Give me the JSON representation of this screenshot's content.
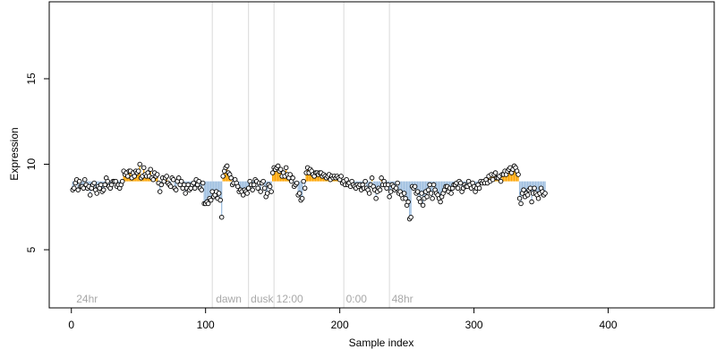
{
  "chart_data": {
    "type": "scatter",
    "title": "",
    "xlabel": "Sample index",
    "ylabel": "Expression",
    "xlim": [
      -16.5,
      479
    ],
    "ylim": [
      1.6,
      19.5
    ],
    "x_ticks": [
      0,
      100,
      200,
      300,
      400
    ],
    "x_tick_labels": [
      "0",
      "100",
      "200",
      "300",
      "400"
    ],
    "y_ticks": [
      5,
      10,
      15
    ],
    "y_tick_labels": [
      "5",
      "10",
      "15"
    ],
    "grid": false,
    "baseline": 9.0,
    "colors": {
      "above": "#ffa500",
      "below": "#9fbfe0",
      "point_stroke": "#000000",
      "point_fill": "#ffffff",
      "divider": "#d9d9d9",
      "phase_label": "#a8a8a8"
    },
    "phase_labels": [
      {
        "x": 3,
        "text": "24hr"
      },
      {
        "x": 107,
        "text": "dawn"
      },
      {
        "x": 133,
        "text": "dusk"
      },
      {
        "x": 152,
        "text": "12:00"
      },
      {
        "x": 204,
        "text": "0:00"
      },
      {
        "x": 238,
        "text": "48hr"
      }
    ],
    "dividers": [
      105,
      132,
      151,
      203,
      237
    ],
    "series": [
      {
        "x_start": 1,
        "values": [
          8.5,
          8.6,
          8.9,
          9.1,
          8.5,
          9.0,
          8.7,
          8.7,
          8.6,
          9.1,
          8.8,
          8.6,
          8.7,
          8.2,
          8.6,
          8.8,
          8.9,
          8.5,
          8.3,
          8.7,
          8.6,
          8.8,
          8.4,
          8.5,
          8.8,
          9.2,
          9.0,
          8.7,
          8.6,
          8.8,
          9.0,
          9.0,
          9.0,
          8.7,
          8.8,
          8.6,
          8.8,
          9.0,
          9.6,
          9.4,
          9.5,
          9.3,
          9.6,
          9.6,
          9.2,
          9.5,
          9.3,
          9.6,
          9.5,
          9.6,
          10.0,
          9.2,
          9.3,
          9.8,
          9.4,
          9.3,
          9.5,
          9.3,
          9.7,
          9.2,
          9.1,
          9.5,
          9.3,
          9.4,
          8.9,
          8.4,
          8.8,
          9.2,
          9.0,
          9.2,
          9.3,
          8.9,
          8.8,
          8.7,
          9.2,
          9.1,
          8.6,
          8.5,
          9.0,
          9.2,
          8.8,
          9.0,
          8.6,
          8.8,
          8.3,
          8.6,
          8.8,
          8.5,
          8.6,
          8.8,
          8.9,
          8.6,
          9.1,
          8.8,
          9.0,
          8.6,
          8.5,
          8.9,
          7.7,
          7.7,
          7.8,
          7.7,
          8.0,
          7.9,
          8.4,
          8.1,
          8.2,
          8.4,
          8.0,
          8.3,
          7.9,
          6.9,
          9.3,
          9.6,
          9.8,
          9.9,
          9.5,
          9.4,
          9.2,
          8.8,
          8.9,
          9.1,
          8.9,
          8.7,
          8.4,
          8.5,
          8.4,
          8.2,
          8.5,
          8.4,
          8.3,
          8.6,
          9.0,
          8.8,
          8.5,
          8.8,
          9.1,
          9.0,
          8.6,
          8.9,
          8.4,
          8.9,
          9.0,
          8.6,
          8.1,
          8.3,
          8.8,
          8.7,
          8.4,
          9.5,
          9.8,
          9.7,
          9.8,
          9.9,
          9.6,
          9.7,
          9.3,
          9.5,
          9.3,
          9.8,
          9.4,
          9.2,
          9.4,
          9.0,
          9.2,
          8.7,
          8.8,
          8.9,
          8.2,
          8.3,
          7.9,
          8.0,
          9.0,
          8.6,
          9.5,
          9.8,
          9.5,
          9.7,
          9.6,
          9.4,
          9.3,
          9.5,
          9.5,
          9.4,
          9.5,
          9.5,
          9.3,
          9.4,
          9.3,
          9.2,
          9.3,
          9.4,
          9.1,
          9.3,
          9.2,
          9.3,
          9.2,
          9.3,
          9.2,
          9.1,
          9.3,
          8.9,
          9.0,
          8.8,
          9.1,
          8.8,
          8.9,
          8.7,
          9.0,
          8.8,
          8.7,
          8.6,
          8.8,
          8.7,
          8.8,
          8.5,
          8.8,
          8.6,
          9.0,
          8.6,
          8.5,
          8.3,
          8.8,
          9.2,
          8.7,
          8.5,
          8.0,
          8.4,
          8.6,
          8.5,
          9.2,
          8.8,
          9.0,
          8.8,
          8.6,
          8.8,
          8.1,
          8.4,
          8.8,
          8.7,
          8.5,
          8.6,
          8.9,
          8.3,
          8.4,
          8.2,
          8.0,
          8.3,
          8.0,
          7.6,
          7.8,
          6.8,
          6.9,
          8.7,
          8.6,
          8.7,
          8.3,
          8.4,
          8.0,
          7.8,
          8.3,
          7.6,
          8.0,
          8.4,
          8.1,
          8.5,
          8.8,
          8.3,
          8.0,
          8.8,
          8.5,
          8.3,
          8.2,
          8.0,
          7.8,
          8.1,
          8.3,
          8.5,
          8.7,
          8.7,
          8.4,
          8.6,
          8.3,
          8.6,
          8.8,
          8.8,
          8.9,
          8.6,
          9.0,
          8.9,
          8.4,
          8.6,
          8.8,
          8.7,
          8.7,
          9.0,
          8.8,
          8.6,
          8.9,
          8.7,
          8.4,
          8.6,
          8.8,
          8.6,
          9.0,
          8.9,
          9.0,
          8.9,
          9.1,
          8.9,
          9.3,
          9.0,
          9.4,
          9.1,
          9.4,
          9.5,
          9.2,
          9.2,
          9.3,
          9.0,
          9.4,
          9.4,
          9.6,
          9.4,
          9.6,
          9.7,
          9.8,
          9.5,
          9.7,
          9.9,
          9.8,
          9.6,
          9.4,
          8.0,
          7.7,
          8.3,
          8.5,
          8.1,
          8.3,
          8.2,
          8.5,
          8.6,
          7.8,
          8.3,
          8.6,
          8.3,
          8.2,
          8.0,
          8.3,
          8.6,
          8.4,
          8.2,
          8.3
        ]
      }
    ]
  }
}
